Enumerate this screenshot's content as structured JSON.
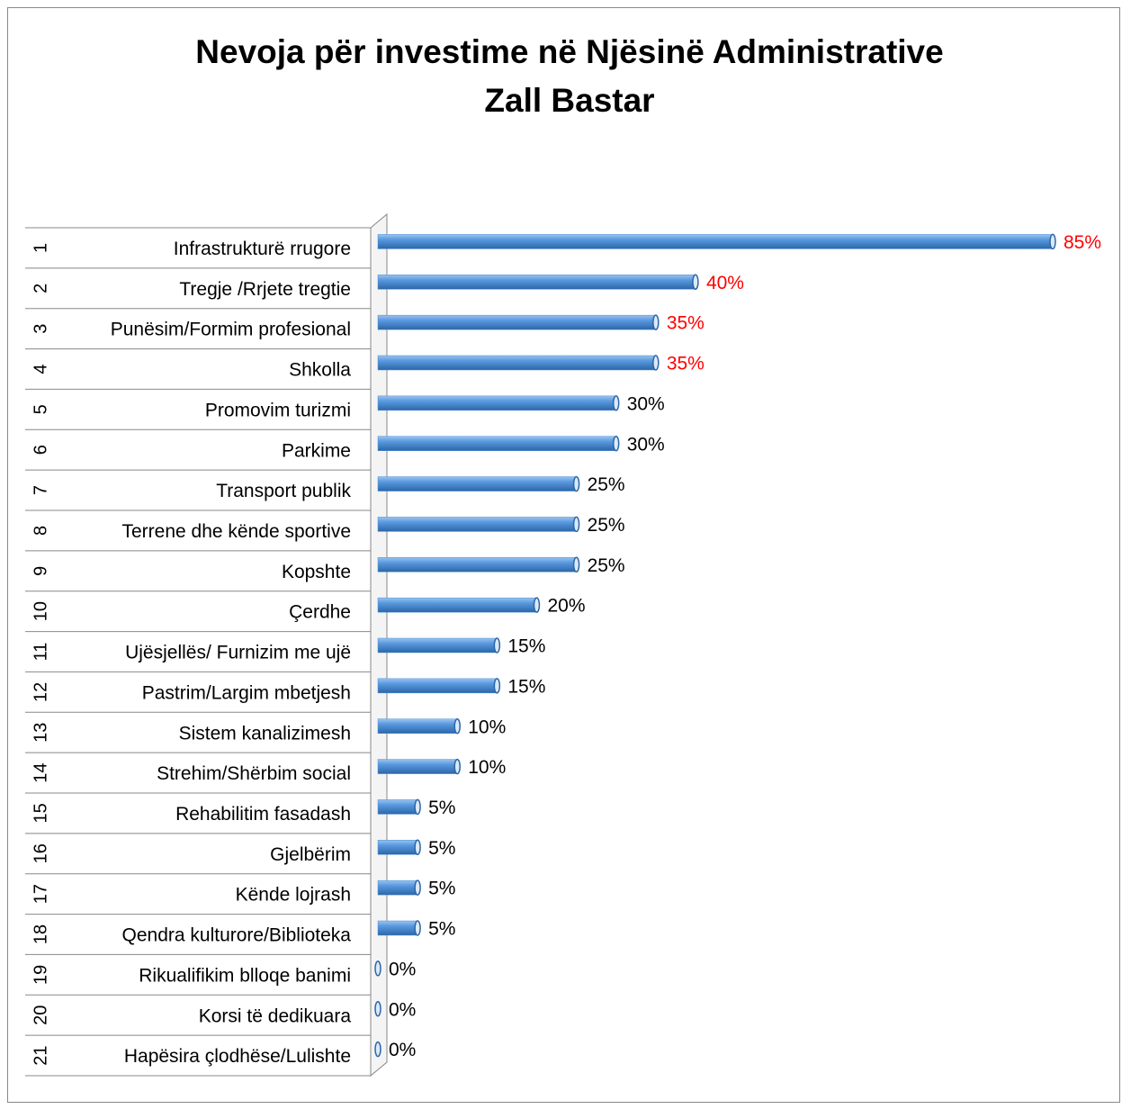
{
  "chart_data": {
    "type": "bar",
    "orientation": "horizontal",
    "title": [
      "Nevoja për investime në Njësinë Administrative",
      "Zall Bastar"
    ],
    "category_numbers": [
      "1",
      "2",
      "3",
      "4",
      "5",
      "6",
      "7",
      "8",
      "9",
      "10",
      "11",
      "12",
      "13",
      "14",
      "15",
      "16",
      "17",
      "18",
      "19",
      "20",
      "21"
    ],
    "categories": [
      "Infrastrukturë rrugore",
      "Tregje /Rrjete tregtie",
      "Punësim/Formim profesional",
      "Shkolla",
      "Promovim turizmi",
      "Parkime",
      "Transport publik",
      "Terrene dhe kënde sportive",
      "Kopshte",
      "Çerdhe",
      "Ujësjellës/ Furnizim me ujë",
      "Pastrim/Largim mbetjesh",
      "Sistem kanalizimesh",
      "Strehim/Shërbim social",
      "Rehabilitim fasadash",
      "Gjelbërim",
      "Kënde lojrash",
      "Qendra kulturore/Biblioteka",
      "Rikualifikim blloqe banimi",
      "Korsi të dedikuara",
      "Hapësira çlodhëse/Lulishte"
    ],
    "values": [
      85,
      40,
      35,
      35,
      30,
      30,
      25,
      25,
      25,
      20,
      15,
      15,
      10,
      10,
      5,
      5,
      5,
      5,
      0,
      0,
      0
    ],
    "value_labels": [
      "85%",
      "40%",
      "35%",
      "35%",
      "30%",
      "30%",
      "25%",
      "25%",
      "25%",
      "20%",
      "15%",
      "15%",
      "10%",
      "10%",
      "5%",
      "5%",
      "5%",
      "5%",
      "0%",
      "0%",
      "0%"
    ],
    "value_label_colors": [
      "#ff0000",
      "#ff0000",
      "#ff0000",
      "#ff0000",
      "#000000",
      "#000000",
      "#000000",
      "#000000",
      "#000000",
      "#000000",
      "#000000",
      "#000000",
      "#000000",
      "#000000",
      "#000000",
      "#000000",
      "#000000",
      "#000000",
      "#000000",
      "#000000",
      "#000000"
    ],
    "color": "#4a8fd6",
    "xlim": [
      0,
      85
    ]
  }
}
